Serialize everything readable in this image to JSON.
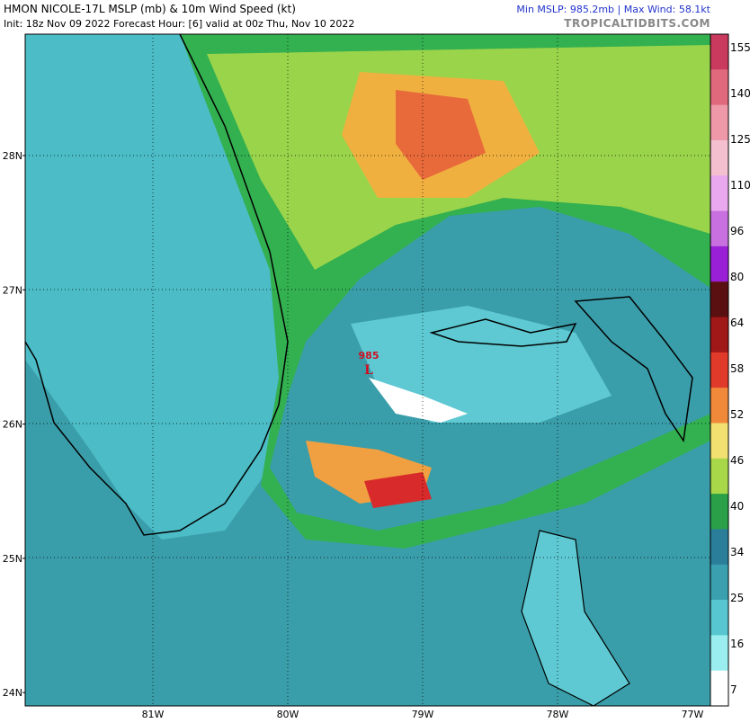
{
  "header": {
    "title": "HMON NICOLE-17L MSLP (mb) & 10m Wind Speed (kt)",
    "subtitle": "Init: 18z Nov 09 2022   Forecast Hour: [6]   valid at 00z Thu, Nov 10 2022",
    "stats": "Min MSLP: 985.2mb | Max Wind: 58.1kt",
    "site": "TROPICALTIDBITS.COM"
  },
  "map": {
    "lat_labels": [
      "28N",
      "27N",
      "26N",
      "25N",
      "24N"
    ],
    "lon_labels": [
      "81W",
      "80W",
      "79W",
      "78W",
      "77W"
    ],
    "low_pressure": "985",
    "low_symbol": "L"
  },
  "colorbar": {
    "ticks": [
      155,
      140,
      125,
      110,
      96,
      80,
      64,
      58,
      52,
      46,
      40,
      34,
      25,
      16,
      7
    ]
  }
}
